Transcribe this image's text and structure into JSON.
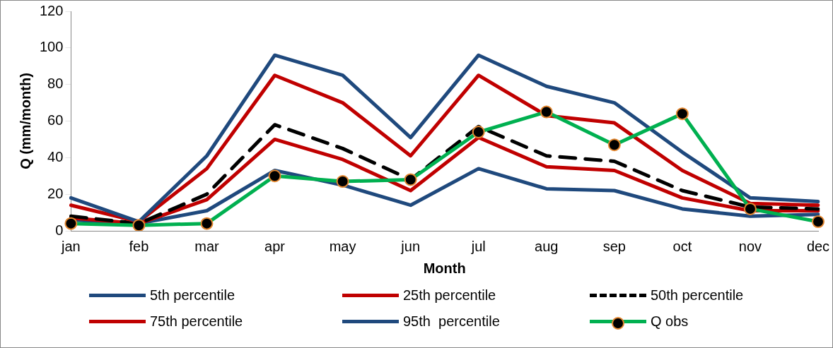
{
  "chart_data": {
    "type": "line",
    "xlabel": "Month",
    "ylabel": "Q (mm/month)",
    "categories": [
      "jan",
      "feb",
      "mar",
      "apr",
      "may",
      "jun",
      "jul",
      "aug",
      "sep",
      "oct",
      "nov",
      "dec"
    ],
    "ylim": [
      0,
      120
    ],
    "yticks": [
      0,
      20,
      40,
      60,
      80,
      100,
      120
    ],
    "grid": false,
    "legend": "bottom",
    "marker": "none",
    "series": [
      {
        "name": "5th percentile",
        "color": "#1f497d",
        "values": [
          6,
          4,
          11,
          33,
          25,
          14,
          34,
          23,
          22,
          12,
          8,
          9
        ]
      },
      {
        "name": "25th percentile",
        "color": "#c00000",
        "values": [
          7,
          4,
          17,
          50,
          39,
          22,
          51,
          35,
          33,
          18,
          11,
          11
        ]
      },
      {
        "name": "50th percentile",
        "color": "#000000",
        "line_style": "dashed",
        "values": [
          8,
          4,
          20,
          58,
          45,
          28,
          57,
          41,
          38,
          22,
          13,
          12
        ]
      },
      {
        "name": "75th percentile",
        "color": "#c00000",
        "values": [
          14,
          5,
          34,
          85,
          70,
          41,
          85,
          63,
          59,
          33,
          15,
          14
        ]
      },
      {
        "name": "95th  percentile",
        "color": "#1f497d",
        "values": [
          18,
          5,
          41,
          96,
          85,
          51,
          96,
          79,
          70,
          43,
          18,
          16
        ]
      },
      {
        "name": "Q obs",
        "color": "#00b050",
        "marker": "circle",
        "values": [
          4,
          3,
          4,
          30,
          27,
          28,
          54,
          65,
          47,
          64,
          12,
          5
        ]
      }
    ]
  }
}
